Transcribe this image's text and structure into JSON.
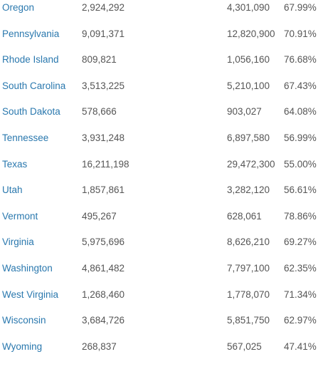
{
  "table": {
    "rows": [
      [
        "Oregon",
        "2,924,292",
        "4,301,090",
        "67.99%"
      ],
      [
        "Pennsylvania",
        "9,091,371",
        "12,820,900",
        "70.91%"
      ],
      [
        "Rhode Island",
        "809,821",
        "1,056,160",
        "76.68%"
      ],
      [
        "South Carolina",
        "3,513,225",
        "5,210,100",
        "67.43%"
      ],
      [
        "South Dakota",
        "578,666",
        "903,027",
        "64.08%"
      ],
      [
        "Tennessee",
        "3,931,248",
        "6,897,580",
        "56.99%"
      ],
      [
        "Texas",
        "16,211,198",
        "29,472,300",
        "55.00%"
      ],
      [
        "Utah",
        "1,857,861",
        "3,282,120",
        "56.61%"
      ],
      [
        "Vermont",
        "495,267",
        "628,061",
        "78.86%"
      ],
      [
        "Virginia",
        "5,975,696",
        "8,626,210",
        "69.27%"
      ],
      [
        "Washington",
        "4,861,482",
        "7,797,100",
        "62.35%"
      ],
      [
        "West Virginia",
        "1,268,460",
        "1,778,070",
        "71.34%"
      ],
      [
        "Wisconsin",
        "3,684,726",
        "5,851,750",
        "62.97%"
      ],
      [
        "Wyoming",
        "268,837",
        "567,025",
        "47.41%"
      ]
    ]
  }
}
